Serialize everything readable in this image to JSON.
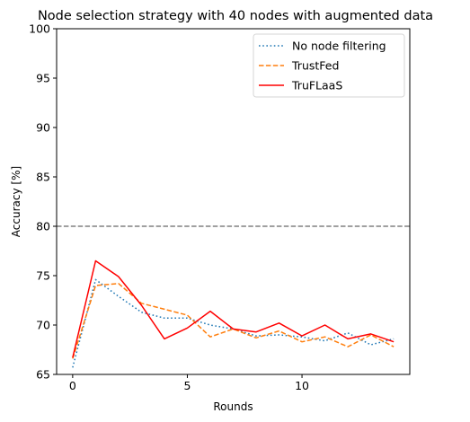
{
  "chart_data": {
    "type": "line",
    "title": "Node selection strategy with 40 nodes with augmented data",
    "xlabel": "Rounds",
    "ylabel": "Accuracy [%]",
    "xlim": [
      -0.7,
      14.7
    ],
    "ylim": [
      65,
      100
    ],
    "xticks": [
      0,
      5,
      10
    ],
    "yticks": [
      65,
      70,
      75,
      80,
      85,
      90,
      95,
      100
    ],
    "grid": false,
    "legend_position": "top-right",
    "reference_line": {
      "y": 80,
      "style": "dashed",
      "color": "#808080"
    },
    "x": [
      0,
      1,
      2,
      3,
      4,
      5,
      6,
      7,
      8,
      9,
      10,
      11,
      12,
      13,
      14
    ],
    "series": [
      {
        "name": "No node filtering",
        "style": "dotted",
        "color": "#1f77b4",
        "values": [
          65.7,
          74.6,
          72.9,
          71.3,
          70.7,
          70.7,
          70.0,
          69.6,
          68.9,
          69.0,
          68.8,
          68.4,
          69.2,
          68.0,
          68.6
        ]
      },
      {
        "name": "TrustFed",
        "style": "dashed",
        "color": "#ff7f0e",
        "values": [
          66.6,
          74.0,
          74.2,
          72.2,
          71.6,
          71.0,
          68.8,
          69.6,
          68.7,
          69.4,
          68.3,
          68.8,
          67.8,
          69.0,
          67.8
        ]
      },
      {
        "name": "TruFLaaS",
        "style": "solid",
        "color": "#ff0000",
        "values": [
          66.7,
          76.5,
          74.9,
          72.0,
          68.6,
          69.7,
          71.4,
          69.6,
          69.3,
          70.2,
          68.9,
          70.0,
          68.6,
          69.1,
          68.3
        ]
      }
    ]
  }
}
